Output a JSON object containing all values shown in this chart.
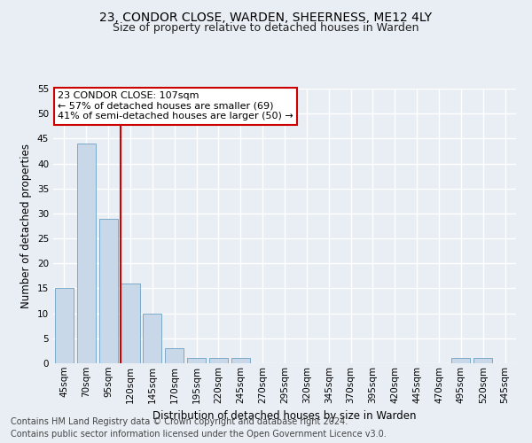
{
  "title1": "23, CONDOR CLOSE, WARDEN, SHEERNESS, ME12 4LY",
  "title2": "Size of property relative to detached houses in Warden",
  "xlabel": "Distribution of detached houses by size in Warden",
  "ylabel": "Number of detached properties",
  "footer1": "Contains HM Land Registry data © Crown copyright and database right 2024.",
  "footer2": "Contains public sector information licensed under the Open Government Licence v3.0.",
  "bin_labels": [
    "45sqm",
    "70sqm",
    "95sqm",
    "120sqm",
    "145sqm",
    "170sqm",
    "195sqm",
    "220sqm",
    "245sqm",
    "270sqm",
    "295sqm",
    "320sqm",
    "345sqm",
    "370sqm",
    "395sqm",
    "420sqm",
    "445sqm",
    "470sqm",
    "495sqm",
    "520sqm",
    "545sqm"
  ],
  "bar_values": [
    15,
    44,
    29,
    16,
    10,
    3,
    1,
    1,
    1,
    0,
    0,
    0,
    0,
    0,
    0,
    0,
    0,
    0,
    1,
    1,
    0
  ],
  "bar_color": "#c8d8e8",
  "bar_edge_color": "#7baac8",
  "vline_x": 2.575,
  "vline_color": "#cc0000",
  "annotation_text": "23 CONDOR CLOSE: 107sqm\n← 57% of detached houses are smaller (69)\n41% of semi-detached houses are larger (50) →",
  "annotation_box_color": "#ffffff",
  "annotation_box_edge": "#cc0000",
  "ylim": [
    0,
    55
  ],
  "yticks": [
    0,
    5,
    10,
    15,
    20,
    25,
    30,
    35,
    40,
    45,
    50,
    55
  ],
  "background_color": "#e8eef4",
  "grid_color": "#ffffff",
  "title1_fontsize": 10,
  "title2_fontsize": 9,
  "axis_label_fontsize": 8.5,
  "tick_fontsize": 7.5,
  "footer_fontsize": 7,
  "annotation_fontsize": 8
}
